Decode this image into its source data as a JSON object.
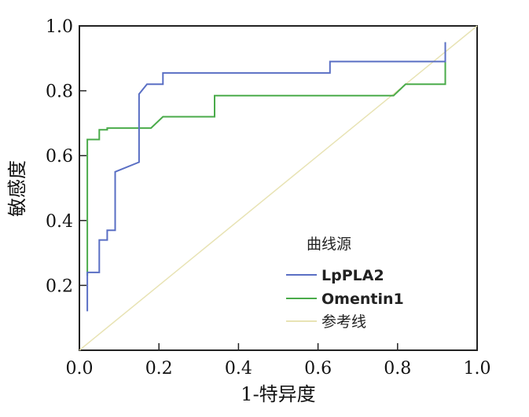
{
  "chart_data": {
    "type": "line",
    "title": "",
    "xlabel": "1-特异度",
    "ylabel": "敏感度",
    "xlim": [
      0,
      1
    ],
    "ylim": [
      0,
      1
    ],
    "x_ticks": [
      "0.0",
      "0.2",
      "0.4",
      "0.6",
      "0.8",
      "1.0"
    ],
    "y_ticks": [
      "0.2",
      "0.4",
      "0.6",
      "0.8",
      "1.0"
    ],
    "grid": false,
    "legend": {
      "title": "曲线源",
      "placement": "bottom-right",
      "entries": [
        "LpPLA2",
        "Omentin1",
        "参考线"
      ]
    },
    "series": [
      {
        "name": "LpPLA2",
        "color": "#5a6fc4",
        "points": [
          [
            0.02,
            0.12
          ],
          [
            0.02,
            0.24
          ],
          [
            0.05,
            0.24
          ],
          [
            0.05,
            0.34
          ],
          [
            0.07,
            0.34
          ],
          [
            0.07,
            0.37
          ],
          [
            0.09,
            0.37
          ],
          [
            0.09,
            0.55
          ],
          [
            0.15,
            0.58
          ],
          [
            0.15,
            0.79
          ],
          [
            0.17,
            0.82
          ],
          [
            0.21,
            0.82
          ],
          [
            0.21,
            0.855
          ],
          [
            0.63,
            0.855
          ],
          [
            0.63,
            0.89
          ],
          [
            0.92,
            0.89
          ],
          [
            0.92,
            0.95
          ]
        ]
      },
      {
        "name": "Omentin1",
        "color": "#4aab4a",
        "points": [
          [
            0.02,
            0.23
          ],
          [
            0.02,
            0.65
          ],
          [
            0.05,
            0.65
          ],
          [
            0.05,
            0.68
          ],
          [
            0.07,
            0.68
          ],
          [
            0.07,
            0.685
          ],
          [
            0.18,
            0.685
          ],
          [
            0.21,
            0.72
          ],
          [
            0.34,
            0.72
          ],
          [
            0.34,
            0.785
          ],
          [
            0.79,
            0.785
          ],
          [
            0.82,
            0.82
          ],
          [
            0.92,
            0.82
          ],
          [
            0.92,
            0.95
          ]
        ]
      },
      {
        "name": "参考线",
        "color": "#e8e3b4",
        "points": [
          [
            0,
            0
          ],
          [
            1,
            1
          ]
        ]
      }
    ]
  }
}
